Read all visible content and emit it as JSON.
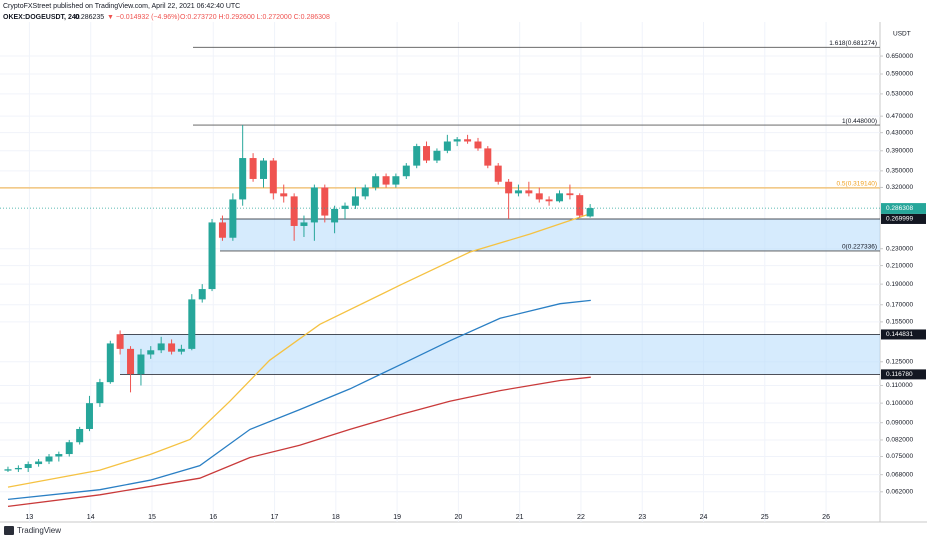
{
  "header": {
    "publisher": "CryptoFXStreet published on TradingView.com, April 22, 2021 06:42:40 UTC",
    "symbol": "OKEX:DOGEUSDT, 240",
    "last": "0.286235",
    "change": "▼ −0.014932 (−4.96%)",
    "ohlc": "O:0.273720 H:0.292600 L:0.272000 C:0.286308"
  },
  "footer": {
    "logo": "TradingView"
  },
  "chart_data": {
    "type": "candlestick",
    "log_scale": true,
    "grid": true,
    "currency": "USDT",
    "up_color": "#26a69a",
    "down_color": "#ef5350",
    "x": [
      12.65,
      12.82,
      12.98,
      13.15,
      13.32,
      13.48,
      13.65,
      13.82,
      13.98,
      14.15,
      14.32,
      14.48,
      14.65,
      14.82,
      14.98,
      15.15,
      15.32,
      15.48,
      15.65,
      15.82,
      15.98,
      16.15,
      16.32,
      16.48,
      16.65,
      16.82,
      16.98,
      17.15,
      17.32,
      17.48,
      17.65,
      17.82,
      17.98,
      18.15,
      18.32,
      18.48,
      18.65,
      18.82,
      18.98,
      19.15,
      19.32,
      19.48,
      19.65,
      19.82,
      19.98,
      20.15,
      20.32,
      20.48,
      20.65,
      20.82,
      20.98,
      21.15,
      21.32,
      21.48,
      21.65,
      21.82,
      21.98,
      22.15
    ],
    "open": [
      0.0695,
      0.07,
      0.0705,
      0.072,
      0.073,
      0.075,
      0.076,
      0.081,
      0.087,
      0.1,
      0.112,
      0.145,
      0.134,
      0.117,
      0.13,
      0.133,
      0.138,
      0.132,
      0.134,
      0.175,
      0.185,
      0.265,
      0.244,
      0.3,
      0.375,
      0.335,
      0.37,
      0.31,
      0.305,
      0.26,
      0.265,
      0.32,
      0.265,
      0.285,
      0.29,
      0.305,
      0.32,
      0.34,
      0.325,
      0.34,
      0.36,
      0.4,
      0.37,
      0.39,
      0.41,
      0.415,
      0.41,
      0.395,
      0.36,
      0.33,
      0.31,
      0.315,
      0.31,
      0.3,
      0.297,
      0.31,
      0.307,
      0.27372
    ],
    "high": [
      0.071,
      0.0715,
      0.073,
      0.074,
      0.076,
      0.077,
      0.082,
      0.088,
      0.104,
      0.114,
      0.14,
      0.148,
      0.136,
      0.134,
      0.136,
      0.143,
      0.141,
      0.137,
      0.18,
      0.19,
      0.27,
      0.275,
      0.31,
      0.448,
      0.385,
      0.375,
      0.375,
      0.325,
      0.31,
      0.275,
      0.325,
      0.325,
      0.29,
      0.295,
      0.32,
      0.325,
      0.345,
      0.345,
      0.345,
      0.365,
      0.405,
      0.41,
      0.395,
      0.425,
      0.42,
      0.425,
      0.418,
      0.4,
      0.365,
      0.335,
      0.325,
      0.33,
      0.32,
      0.305,
      0.315,
      0.325,
      0.31,
      0.2926
    ],
    "low": [
      0.069,
      0.069,
      0.069,
      0.071,
      0.072,
      0.073,
      0.075,
      0.08,
      0.086,
      0.098,
      0.111,
      0.13,
      0.106,
      0.11,
      0.127,
      0.131,
      0.13,
      0.13,
      0.133,
      0.172,
      0.183,
      0.24,
      0.24,
      0.29,
      0.33,
      0.32,
      0.3,
      0.295,
      0.24,
      0.245,
      0.24,
      0.265,
      0.25,
      0.27,
      0.285,
      0.3,
      0.315,
      0.32,
      0.32,
      0.335,
      0.355,
      0.365,
      0.365,
      0.385,
      0.4,
      0.405,
      0.39,
      0.355,
      0.325,
      0.27,
      0.305,
      0.305,
      0.295,
      0.29,
      0.295,
      0.3,
      0.272,
      0.272
    ],
    "close": [
      0.07,
      0.0705,
      0.072,
      0.073,
      0.075,
      0.076,
      0.081,
      0.087,
      0.1,
      0.112,
      0.138,
      0.134,
      0.117,
      0.13,
      0.133,
      0.138,
      0.132,
      0.134,
      0.175,
      0.185,
      0.265,
      0.244,
      0.3,
      0.375,
      0.335,
      0.37,
      0.31,
      0.305,
      0.26,
      0.265,
      0.32,
      0.275,
      0.285,
      0.29,
      0.305,
      0.32,
      0.34,
      0.325,
      0.34,
      0.36,
      0.4,
      0.37,
      0.39,
      0.41,
      0.415,
      0.41,
      0.395,
      0.36,
      0.33,
      0.31,
      0.315,
      0.31,
      0.3,
      0.297,
      0.31,
      0.307,
      0.275,
      0.286308
    ],
    "lines": [
      {
        "color": "#f5c242",
        "x": [
          12.65,
          14.15,
          14.97,
          15.62,
          16.27,
          16.92,
          17.74,
          19.05,
          20.19,
          21.17,
          22.16
        ],
        "values": [
          0.0636,
          0.0697,
          0.0758,
          0.0822,
          0.101,
          0.126,
          0.153,
          0.189,
          0.226,
          0.249,
          0.278
        ]
      },
      {
        "color": "#2a7fc4",
        "x": [
          12.65,
          14.15,
          14.97,
          15.78,
          16.6,
          17.41,
          18.23,
          19.05,
          19.86,
          20.68,
          21.66,
          22.16
        ],
        "values": [
          0.0595,
          0.0627,
          0.066,
          0.0714,
          0.0868,
          0.0966,
          0.108,
          0.123,
          0.14,
          0.158,
          0.171,
          0.174
        ]
      },
      {
        "color": "#c93a3a",
        "x": [
          12.65,
          14.15,
          15.78,
          16.6,
          17.41,
          18.23,
          19.05,
          19.86,
          20.68,
          21.66,
          22.16
        ],
        "values": [
          0.0573,
          0.061,
          0.0667,
          0.0746,
          0.0797,
          0.0868,
          0.094,
          0.101,
          0.107,
          0.113,
          0.115
        ]
      }
    ],
    "fib_levels": [
      {
        "value": 0.681274,
        "label": "1.618(0.681274)",
        "color": "#555555"
      },
      {
        "value": 0.448,
        "label": "1(0.448000)",
        "color": "#555555"
      },
      {
        "value": 0.31914,
        "label": "0.5(0.319140)",
        "color": "#f0a020"
      },
      {
        "value": 0.227336,
        "label": "0(0.227336)",
        "color": "#555555"
      }
    ],
    "zones": [
      {
        "top": 0.269999,
        "bottom": 0.227336
      },
      {
        "top": 0.144831,
        "bottom": 0.11678
      }
    ],
    "price_tags": [
      {
        "value": 0.286308,
        "label": "0.286308",
        "color": "#26a69a"
      },
      {
        "value": 0.269999,
        "label": "0.269999",
        "color": "#131722"
      },
      {
        "value": 0.144831,
        "label": "0.144831",
        "color": "#131722"
      },
      {
        "value": 0.11678,
        "label": "0.116780",
        "color": "#131722"
      }
    ],
    "countdown": "01:17:23",
    "xlim": [
      12.52,
      26.88
    ],
    "xticks": [
      13,
      14,
      15,
      16,
      17,
      18,
      19,
      20,
      21,
      22,
      23,
      24,
      25,
      26
    ],
    "ylim": [
      0.0556,
      0.781
    ],
    "yticks": [
      {
        "value": 0.65,
        "label": "0.650000"
      },
      {
        "value": 0.59,
        "label": "0.590000"
      },
      {
        "value": 0.53,
        "label": "0.530000"
      },
      {
        "value": 0.47,
        "label": "0.470000"
      },
      {
        "value": 0.43,
        "label": "0.430000"
      },
      {
        "value": 0.39,
        "label": "0.390000"
      },
      {
        "value": 0.35,
        "label": "0.350000"
      },
      {
        "value": 0.32,
        "label": "0.320000"
      },
      {
        "value": 0.23,
        "label": "0.230000"
      },
      {
        "value": 0.21,
        "label": "0.210000"
      },
      {
        "value": 0.19,
        "label": "0.190000"
      },
      {
        "value": 0.17,
        "label": "0.170000"
      },
      {
        "value": 0.155,
        "label": "0.155000"
      },
      {
        "value": 0.125,
        "label": "0.125000"
      },
      {
        "value": 0.11,
        "label": "0.110000"
      },
      {
        "value": 0.1,
        "label": "0.100000"
      },
      {
        "value": 0.09,
        "label": "0.090000"
      },
      {
        "value": 0.082,
        "label": "0.082000"
      },
      {
        "value": 0.075,
        "label": "0.075000"
      },
      {
        "value": 0.068,
        "label": "0.068000"
      },
      {
        "value": 0.062,
        "label": "0.062000"
      }
    ]
  }
}
